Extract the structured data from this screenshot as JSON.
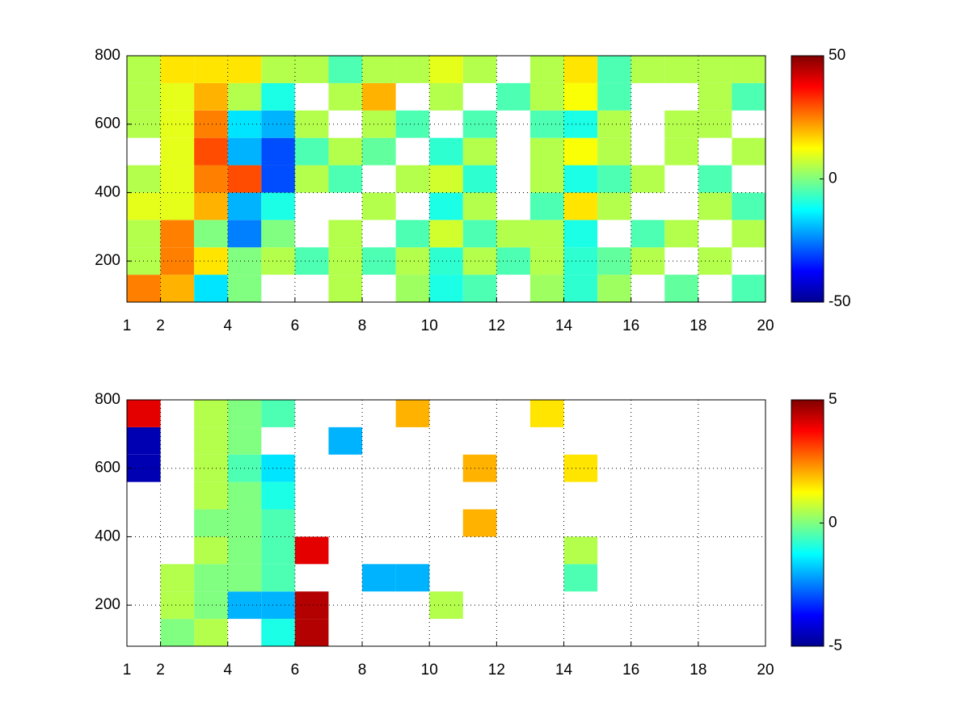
{
  "chart_data": [
    {
      "type": "heatmap",
      "colormap": "jet",
      "grid": true,
      "xbins": [
        1,
        2,
        3,
        4,
        5,
        6,
        7,
        8,
        9,
        10,
        11,
        12,
        13,
        14,
        15,
        16,
        17,
        18,
        19,
        20
      ],
      "ybins": [
        80,
        160,
        240,
        320,
        400,
        480,
        560,
        640,
        720,
        800
      ],
      "xlim": [
        1,
        20
      ],
      "ylim": [
        80,
        800
      ],
      "xticks": [
        1,
        2,
        4,
        6,
        8,
        10,
        12,
        14,
        16,
        18,
        20
      ],
      "yticks": [
        200,
        400,
        600,
        800
      ],
      "clim": [
        -50,
        50
      ],
      "cticks": [
        -50,
        0,
        50
      ],
      "values": [
        [
          25,
          20,
          -15,
          0,
          null,
          null,
          5,
          null,
          3,
          -10,
          -5,
          null,
          3,
          -8,
          3,
          null,
          -3,
          null,
          -5
        ],
        [
          5,
          25,
          15,
          0,
          5,
          -5,
          5,
          -5,
          5,
          -8,
          5,
          -5,
          5,
          -8,
          -3,
          5,
          null,
          5,
          null
        ],
        [
          5,
          25,
          0,
          -25,
          0,
          null,
          5,
          null,
          -5,
          8,
          -5,
          5,
          5,
          -10,
          null,
          -5,
          5,
          null,
          5
        ],
        [
          10,
          10,
          20,
          -20,
          -10,
          null,
          null,
          5,
          null,
          -10,
          5,
          null,
          -5,
          15,
          5,
          null,
          null,
          5,
          -5
        ],
        [
          5,
          10,
          25,
          30,
          -30,
          5,
          -5,
          null,
          5,
          8,
          -8,
          null,
          5,
          -10,
          -5,
          5,
          null,
          -5,
          null
        ],
        [
          null,
          10,
          30,
          -20,
          -30,
          -5,
          5,
          -3,
          null,
          -8,
          5,
          null,
          5,
          12,
          5,
          null,
          5,
          null,
          5
        ],
        [
          5,
          10,
          25,
          -15,
          -20,
          5,
          null,
          5,
          -5,
          null,
          -5,
          null,
          -5,
          -10,
          5,
          null,
          5,
          5,
          null
        ],
        [
          5,
          10,
          20,
          5,
          -10,
          null,
          5,
          20,
          null,
          5,
          null,
          -5,
          5,
          12,
          -5,
          null,
          null,
          5,
          -5
        ],
        [
          5,
          15,
          15,
          15,
          5,
          5,
          -5,
          5,
          5,
          10,
          5,
          null,
          5,
          15,
          -5,
          5,
          5,
          5,
          5
        ]
      ]
    },
    {
      "type": "heatmap",
      "colormap": "jet",
      "grid": true,
      "xbins": [
        1,
        2,
        3,
        4,
        5,
        6,
        7,
        8,
        9,
        10,
        11,
        12,
        13,
        14,
        15,
        16,
        17,
        18,
        19,
        20
      ],
      "ybins": [
        80,
        160,
        240,
        320,
        400,
        480,
        560,
        640,
        720,
        800
      ],
      "xlim": [
        1,
        20
      ],
      "ylim": [
        80,
        800
      ],
      "xticks": [
        1,
        2,
        4,
        6,
        8,
        10,
        12,
        14,
        16,
        18,
        20
      ],
      "yticks": [
        200,
        400,
        600,
        800
      ],
      "clim": [
        -5,
        5
      ],
      "cticks": [
        -5,
        0,
        5
      ],
      "values": [
        [
          null,
          0,
          0.5,
          null,
          -1,
          4.5,
          null,
          null,
          null,
          null,
          null,
          null,
          null,
          null,
          null,
          null,
          null,
          null,
          null
        ],
        [
          null,
          0.5,
          0,
          -2,
          -2,
          4.5,
          null,
          null,
          null,
          0.5,
          null,
          null,
          null,
          null,
          null,
          null,
          null,
          null,
          null
        ],
        [
          null,
          0.5,
          0,
          0,
          -0.5,
          null,
          null,
          -2,
          -2,
          null,
          null,
          null,
          null,
          -0.5,
          null,
          null,
          null,
          null,
          null
        ],
        [
          null,
          null,
          0.5,
          0,
          -0.5,
          4,
          null,
          null,
          null,
          null,
          null,
          null,
          null,
          0.5,
          null,
          null,
          null,
          null,
          null
        ],
        [
          null,
          null,
          0,
          0,
          -0.5,
          null,
          null,
          null,
          null,
          null,
          2,
          null,
          null,
          null,
          null,
          null,
          null,
          null,
          null
        ],
        [
          null,
          null,
          0.5,
          0,
          -1,
          null,
          null,
          null,
          null,
          null,
          null,
          null,
          null,
          null,
          null,
          null,
          null,
          null,
          null
        ],
        [
          -4.5,
          null,
          0.5,
          -0.5,
          -1.5,
          null,
          null,
          null,
          null,
          null,
          2,
          null,
          null,
          1.5,
          null,
          null,
          null,
          null,
          null
        ],
        [
          -4.5,
          null,
          0.5,
          0,
          null,
          null,
          -2,
          null,
          null,
          null,
          null,
          null,
          null,
          null,
          null,
          null,
          null,
          null,
          null
        ],
        [
          4,
          null,
          0.5,
          0,
          -0.5,
          null,
          null,
          null,
          2,
          null,
          null,
          null,
          1.5,
          null,
          null,
          null,
          null,
          null,
          null
        ]
      ]
    }
  ]
}
